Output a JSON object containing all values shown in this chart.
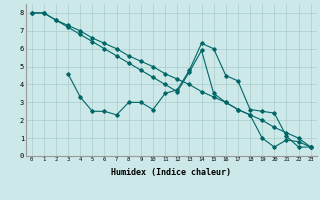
{
  "xlabel": "Humidex (Indice chaleur)",
  "background_color": "#cce8e8",
  "grid_color": "#aacccc",
  "line_color": "#006666",
  "xlim": [
    -0.5,
    23.5
  ],
  "ylim": [
    0,
    8.5
  ],
  "xticks": [
    0,
    1,
    2,
    3,
    4,
    5,
    6,
    7,
    8,
    9,
    10,
    11,
    12,
    13,
    14,
    15,
    16,
    17,
    18,
    19,
    20,
    21,
    22,
    23
  ],
  "yticks": [
    0,
    1,
    2,
    3,
    4,
    5,
    6,
    7,
    8
  ],
  "series1_x": [
    0,
    1,
    2,
    3,
    4,
    5,
    6,
    7,
    8,
    9,
    10,
    11,
    12,
    13,
    14,
    15,
    16,
    17,
    18,
    19,
    20,
    21,
    22,
    23
  ],
  "series1_y": [
    8.0,
    8.0,
    7.6,
    7.3,
    7.0,
    6.6,
    6.3,
    6.0,
    5.6,
    5.3,
    5.0,
    4.6,
    4.3,
    4.0,
    3.6,
    3.3,
    3.0,
    2.6,
    2.3,
    2.0,
    1.6,
    1.3,
    1.0,
    0.5
  ],
  "series2_x": [
    3,
    4,
    5,
    6,
    7,
    8,
    9,
    10,
    11,
    12,
    13,
    14,
    15,
    16,
    17,
    18,
    19,
    20,
    21,
    22,
    23
  ],
  "series2_y": [
    4.6,
    3.3,
    2.5,
    2.5,
    2.3,
    3.0,
    3.0,
    2.6,
    3.5,
    3.7,
    4.8,
    6.3,
    6.0,
    4.5,
    4.2,
    2.6,
    2.5,
    2.4,
    1.1,
    0.5,
    0.5
  ],
  "series3_x": [
    0,
    1,
    2,
    3,
    4,
    5,
    6,
    7,
    8,
    9,
    10,
    11,
    12,
    13,
    14,
    15,
    16,
    17,
    18,
    19,
    20,
    21,
    22,
    23
  ],
  "series3_y": [
    8.0,
    8.0,
    7.6,
    7.2,
    6.8,
    6.4,
    6.0,
    5.6,
    5.2,
    4.8,
    4.4,
    4.0,
    3.6,
    4.7,
    5.9,
    3.5,
    3.0,
    2.6,
    2.3,
    1.0,
    0.5,
    0.9,
    0.8,
    0.5
  ]
}
